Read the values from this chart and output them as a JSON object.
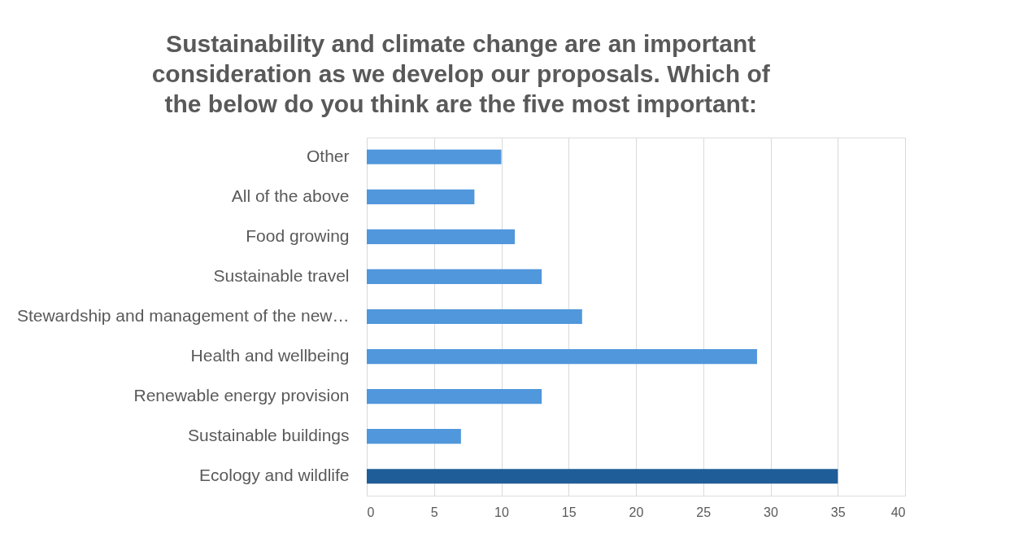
{
  "chart_data": {
    "type": "bar",
    "orientation": "horizontal",
    "title": "Sustainability and climate change are an important consideration as we develop our proposals. Which of the below do you think are the five most important:",
    "categories": [
      "Other",
      "All of the above",
      "Food growing",
      "Sustainable travel",
      "Stewardship and management of the new…",
      "Health and wellbeing",
      "Renewable energy provision",
      "Sustainable buildings",
      "Ecology and wildlife"
    ],
    "values": [
      10,
      8,
      11,
      13,
      16,
      29,
      13,
      7,
      35
    ],
    "colors": [
      "#5097dc",
      "#5097dc",
      "#5097dc",
      "#5097dc",
      "#5097dc",
      "#5097dc",
      "#5097dc",
      "#5097dc",
      "#1f5d98"
    ],
    "xlim": [
      0,
      40
    ],
    "xticks": [
      0,
      5,
      10,
      15,
      20,
      25,
      30,
      35,
      40
    ],
    "grid": "x"
  }
}
